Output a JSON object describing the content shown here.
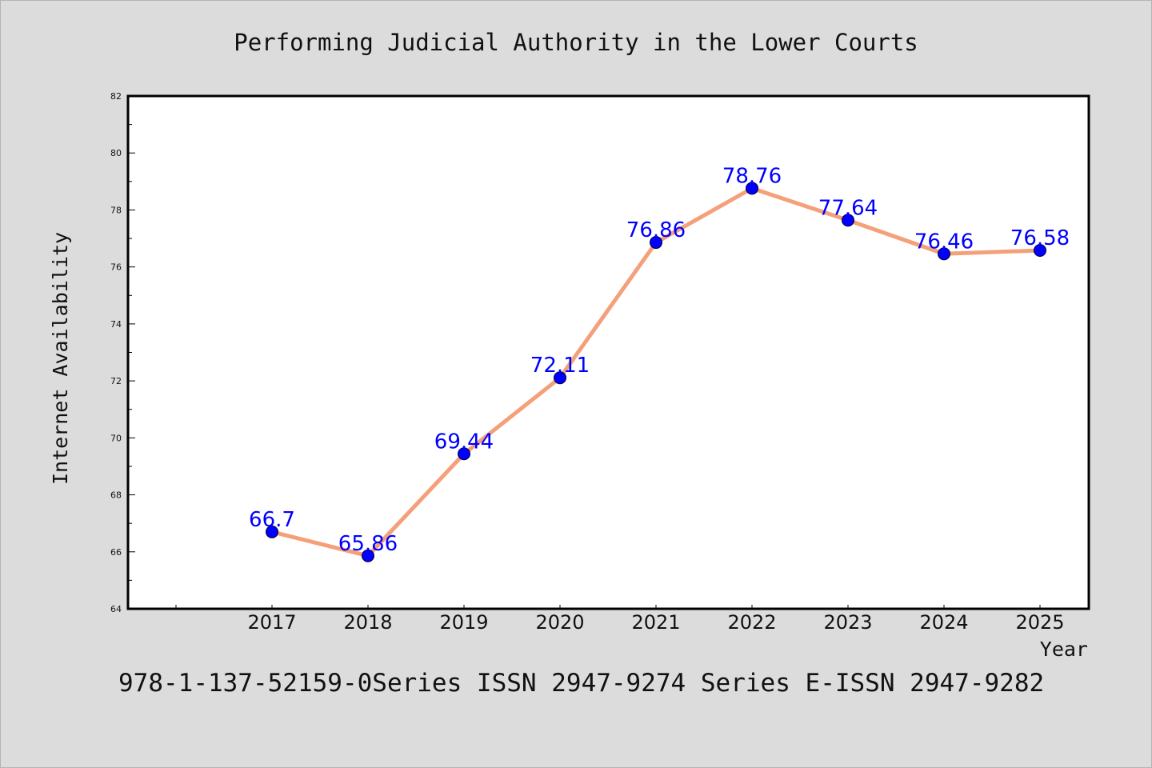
{
  "chart_data": {
    "type": "line",
    "title": "Performing Judicial Authority in the Lower Courts",
    "xlabel": "Year",
    "ylabel": "Internet Availability",
    "categories": [
      "2017",
      "2018",
      "2019",
      "2020",
      "2021",
      "2022",
      "2023",
      "2024",
      "2025"
    ],
    "series": [
      {
        "values": [
          66.7,
          65.86,
          69.44,
          72.11,
          76.86,
          78.76,
          77.64,
          76.46,
          76.58
        ],
        "data_labels": [
          "66.7",
          "65.86",
          "69.44",
          "72.11",
          "76.86",
          "78.76",
          "77.64",
          "76.46",
          "76.58"
        ]
      }
    ],
    "ylim": [
      64,
      82
    ],
    "yticks": [
      "64",
      "66",
      "68",
      "70",
      "72",
      "74",
      "76",
      "78",
      "80",
      "82"
    ],
    "grid": false,
    "legend": "none"
  },
  "footer": {
    "text": "978-1-137-52159-0Series ISSN 2947-9274 Series E-ISSN 2947-9282"
  },
  "colors": {
    "background": "#dcdcdc",
    "plot_background": "#ffffff",
    "line": "#f4a07a",
    "marker": "#0000ff",
    "data_label": "#0000ff"
  }
}
